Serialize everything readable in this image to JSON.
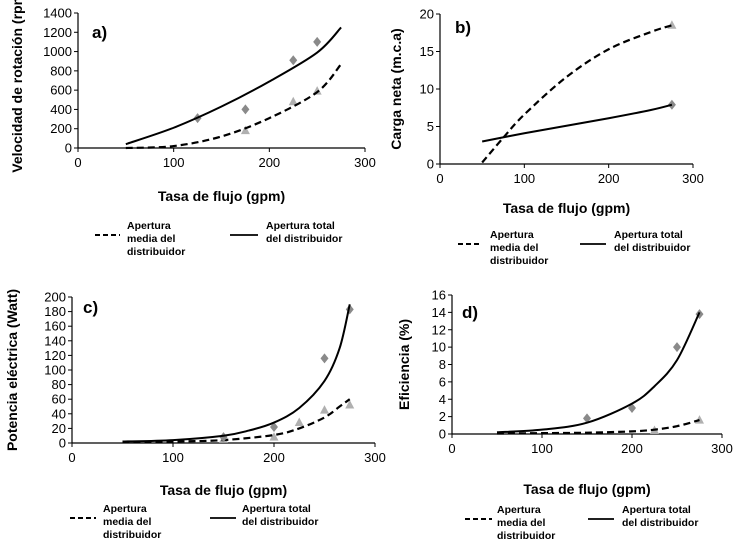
{
  "chart_data": [
    {
      "id": "a",
      "type": "scatter",
      "panel_label": "a)",
      "xlabel": "Tasa de flujo (gpm)",
      "ylabel": "Velocidad de rotación (rpm)",
      "xlim": [
        0,
        300
      ],
      "ylim": [
        0,
        1400
      ],
      "xticks": [
        0,
        100,
        200,
        300
      ],
      "yticks": [
        0,
        200,
        400,
        600,
        800,
        1000,
        1200,
        1400
      ],
      "series": [
        {
          "name": "Apertura media del distribuidor",
          "name_lines": [
            "Apertura",
            "media del",
            "distribuidor"
          ],
          "line": "dashed",
          "marker": "triangle",
          "color": "#b0b0b0",
          "points": [
            [
              175,
              180
            ],
            [
              225,
              480
            ],
            [
              250,
              590
            ]
          ],
          "trend": [
            [
              50,
              0
            ],
            [
              100,
              20
            ],
            [
              150,
              120
            ],
            [
              200,
              310
            ],
            [
              250,
              580
            ],
            [
              275,
              870
            ]
          ]
        },
        {
          "name": "Apertura total del distribuidor",
          "name_lines": [
            "Apertura total",
            "del distribuidor"
          ],
          "line": "solid",
          "marker": "diamond",
          "color": "#8a8a8a",
          "points": [
            [
              125,
              310
            ],
            [
              175,
              400
            ],
            [
              225,
              910
            ],
            [
              250,
              1100
            ]
          ],
          "trend": [
            [
              50,
              40
            ],
            [
              100,
              210
            ],
            [
              150,
              430
            ],
            [
              200,
              690
            ],
            [
              250,
              990
            ],
            [
              275,
              1250
            ]
          ]
        }
      ]
    },
    {
      "id": "b",
      "type": "scatter",
      "panel_label": "b)",
      "xlabel": "Tasa de flujo (gpm)",
      "ylabel": "Carga neta (m.c.a)",
      "xlim": [
        0,
        300
      ],
      "ylim": [
        0,
        20
      ],
      "xticks": [
        0,
        100,
        200,
        300
      ],
      "yticks": [
        0,
        5,
        10,
        15,
        20
      ],
      "series": [
        {
          "name": "Apertura media del distribuidor",
          "name_lines": [
            "Apertura",
            "media del",
            "distribuidor"
          ],
          "line": "dashed",
          "marker": "triangle",
          "color": "#b0b0b0",
          "points": [
            [
              275,
              18.5
            ]
          ],
          "trend": [
            [
              50,
              0.2
            ],
            [
              75,
              3.5
            ],
            [
              100,
              6.6
            ],
            [
              150,
              11.6
            ],
            [
              200,
              15.3
            ],
            [
              250,
              17.6
            ],
            [
              275,
              18.5
            ]
          ]
        },
        {
          "name": "Apertura total del distribuidor",
          "name_lines": [
            "Apertura total",
            "del distribuidor"
          ],
          "line": "solid",
          "marker": "diamond",
          "color": "#8a8a8a",
          "points": [
            [
              275,
              7.9
            ]
          ],
          "trend": [
            [
              50,
              3.0
            ],
            [
              100,
              4.1
            ],
            [
              150,
              5.1
            ],
            [
              200,
              6.1
            ],
            [
              250,
              7.2
            ],
            [
              275,
              7.9
            ]
          ]
        }
      ]
    },
    {
      "id": "c",
      "type": "scatter",
      "panel_label": "c)",
      "xlabel": "Tasa de flujo (gpm)",
      "ylabel": "Potencia eléctrica (Watt)",
      "xlim": [
        0,
        300
      ],
      "ylim": [
        0,
        200
      ],
      "xticks": [
        0,
        100,
        200,
        300
      ],
      "yticks": [
        0,
        20,
        40,
        60,
        80,
        100,
        120,
        140,
        160,
        180,
        200
      ],
      "series": [
        {
          "name": "Apertura media del distribuidor",
          "name_lines": [
            "Apertura",
            "media del",
            "distribuidor"
          ],
          "line": "dashed",
          "marker": "triangle",
          "color": "#b0b0b0",
          "points": [
            [
              150,
              5
            ],
            [
              200,
              8
            ],
            [
              225,
              28
            ],
            [
              250,
              45
            ],
            [
              275,
              52
            ]
          ],
          "trend": [
            [
              50,
              1
            ],
            [
              100,
              2
            ],
            [
              150,
              4
            ],
            [
              200,
              11
            ],
            [
              225,
              20
            ],
            [
              250,
              35
            ],
            [
              265,
              50
            ],
            [
              275,
              60
            ]
          ]
        },
        {
          "name": "Apertura total del distribuidor",
          "name_lines": [
            "Apertura total",
            "del distribuidor"
          ],
          "line": "solid",
          "marker": "diamond",
          "color": "#8a8a8a",
          "points": [
            [
              150,
              8
            ],
            [
              200,
              22
            ],
            [
              250,
              116
            ],
            [
              275,
              183
            ]
          ],
          "trend": [
            [
              50,
              2
            ],
            [
              100,
              4
            ],
            [
              150,
              10
            ],
            [
              175,
              17
            ],
            [
              200,
              28
            ],
            [
              225,
              48
            ],
            [
              250,
              85
            ],
            [
              265,
              130
            ],
            [
              275,
              190
            ]
          ]
        }
      ]
    },
    {
      "id": "d",
      "type": "scatter",
      "panel_label": "d)",
      "xlabel": "Tasa de flujo (gpm)",
      "ylabel": "Eficiencia (%)",
      "xlim": [
        0,
        300
      ],
      "ylim": [
        0,
        16
      ],
      "xticks": [
        0,
        100,
        200,
        300
      ],
      "yticks": [
        0,
        2,
        4,
        6,
        8,
        10,
        12,
        14,
        16
      ],
      "series": [
        {
          "name": "Apertura media del distribuidor",
          "name_lines": [
            "Apertura",
            "media del",
            "distribuidor"
          ],
          "line": "dashed",
          "marker": "triangle",
          "color": "#b0b0b0",
          "points": [
            [
              225,
              0.4
            ],
            [
              275,
              1.6
            ]
          ],
          "trend": [
            [
              50,
              0.05
            ],
            [
              100,
              0.1
            ],
            [
              150,
              0.15
            ],
            [
              200,
              0.3
            ],
            [
              225,
              0.5
            ],
            [
              250,
              0.9
            ],
            [
              275,
              1.6
            ]
          ]
        },
        {
          "name": "Apertura total del distribuidor",
          "name_lines": [
            "Apertura total",
            "del distribuidor"
          ],
          "line": "solid",
          "marker": "diamond",
          "color": "#8a8a8a",
          "points": [
            [
              150,
              1.8
            ],
            [
              200,
              3.0
            ],
            [
              250,
              10.0
            ],
            [
              275,
              13.8
            ]
          ],
          "trend": [
            [
              50,
              0.2
            ],
            [
              100,
              0.5
            ],
            [
              150,
              1.3
            ],
            [
              200,
              3.5
            ],
            [
              225,
              5.5
            ],
            [
              250,
              8.5
            ],
            [
              275,
              14
            ]
          ]
        }
      ]
    }
  ]
}
